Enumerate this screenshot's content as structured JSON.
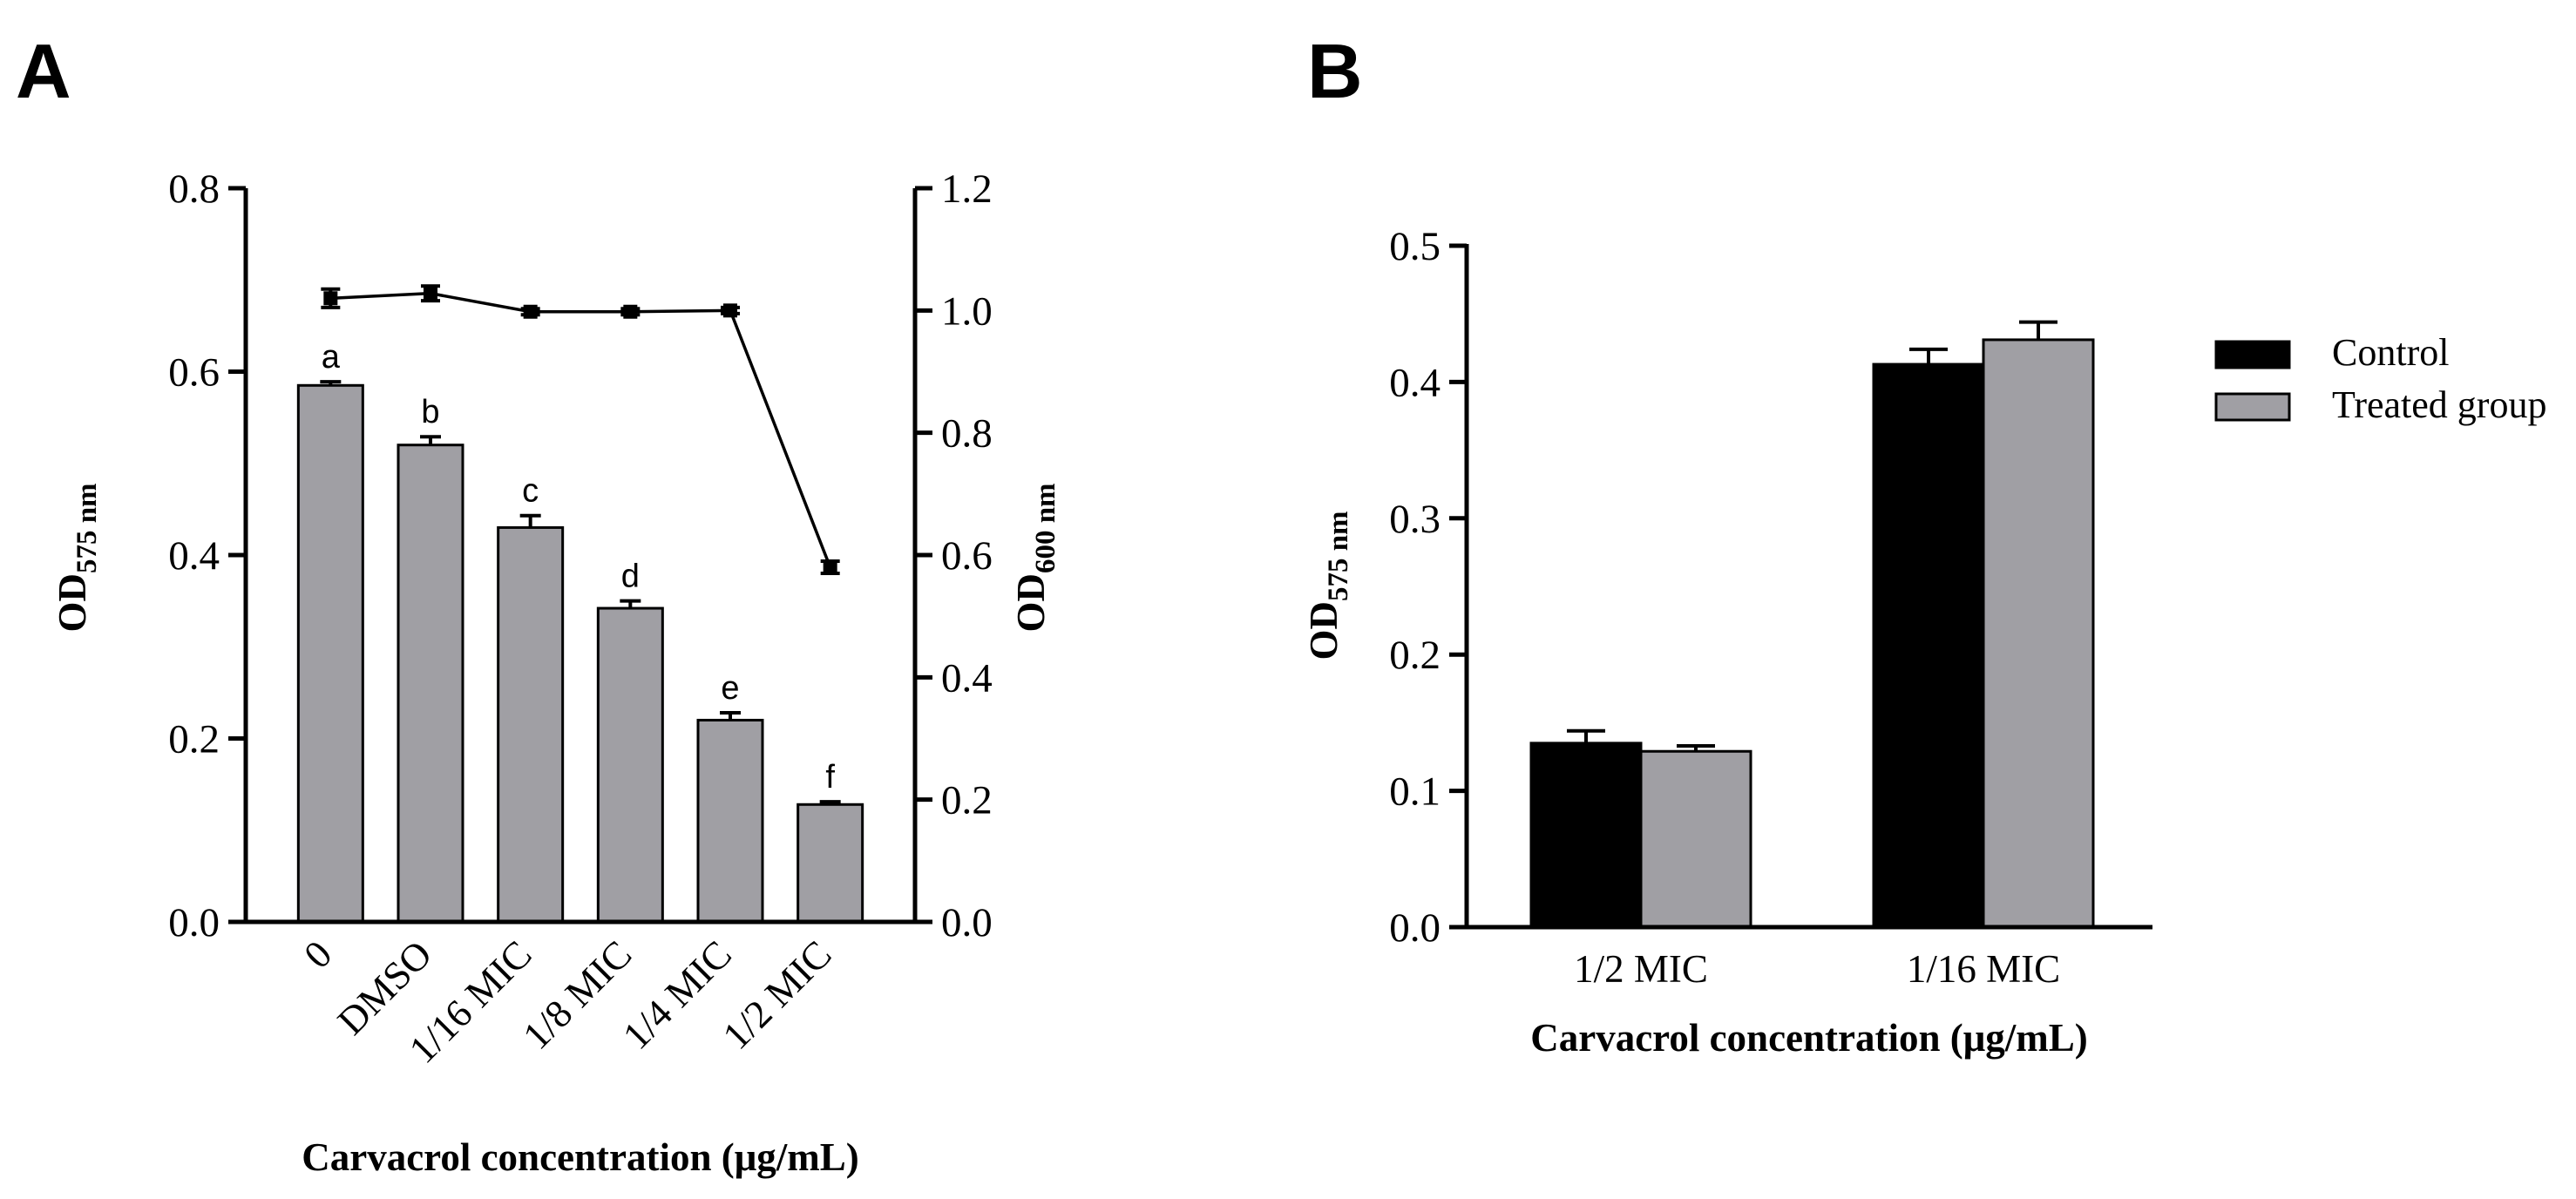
{
  "chart_data": [
    {
      "panel_label": "A",
      "type": "bar",
      "categories": [
        "0",
        "DMSO",
        "1/16 MIC",
        "1/8 MIC",
        "1/4 MIC",
        "1/2 MIC"
      ],
      "series": [
        {
          "name": "OD575",
          "axis": "left",
          "kind": "bar",
          "color": "#a09fa4",
          "values": [
            0.585,
            0.52,
            0.43,
            0.342,
            0.22,
            0.128
          ],
          "errors": [
            0.004,
            0.009,
            0.013,
            0.008,
            0.008,
            0.003
          ],
          "labels": [
            "a",
            "b",
            "c",
            "d",
            "e",
            "f"
          ]
        },
        {
          "name": "OD600",
          "axis": "right",
          "kind": "line",
          "color": "#000000",
          "values": [
            1.02,
            1.028,
            0.998,
            0.998,
            1.0,
            0.58
          ],
          "errors": [
            0.015,
            0.012,
            0.005,
            0.005,
            0.005,
            0.01
          ]
        }
      ],
      "title": "",
      "xlabel": "Carvacrol concentration (μg/mL)",
      "ylabel": {
        "main": "OD",
        "sub": "575 nm"
      },
      "y2label": {
        "main": "OD",
        "sub": "600 nm"
      },
      "ylim": [
        0,
        0.8
      ],
      "yticks": [
        "0.0",
        "0.2",
        "0.4",
        "0.6",
        "0.8"
      ],
      "y2lim": [
        0,
        1.2
      ],
      "y2ticks": [
        "0.0",
        "0.2",
        "0.4",
        "0.6",
        "0.8",
        "1.0",
        "1.2"
      ]
    },
    {
      "panel_label": "B",
      "type": "bar",
      "categories": [
        "1/2 MIC",
        "1/16 MIC"
      ],
      "series": [
        {
          "name": "Control",
          "color": "#000000",
          "values": [
            0.135,
            0.413
          ],
          "errors": [
            0.009,
            0.011
          ]
        },
        {
          "name": "Treated group",
          "color": "#a09fa4",
          "values": [
            0.129,
            0.431
          ],
          "errors": [
            0.004,
            0.013
          ]
        }
      ],
      "title": "",
      "xlabel": "Carvacrol concentration (μg/mL)",
      "ylabel": {
        "main": "OD",
        "sub": "575 nm"
      },
      "ylim": [
        0,
        0.5
      ],
      "yticks": [
        "0.0",
        "0.1",
        "0.2",
        "0.3",
        "0.4",
        "0.5"
      ],
      "legend": "right"
    }
  ]
}
